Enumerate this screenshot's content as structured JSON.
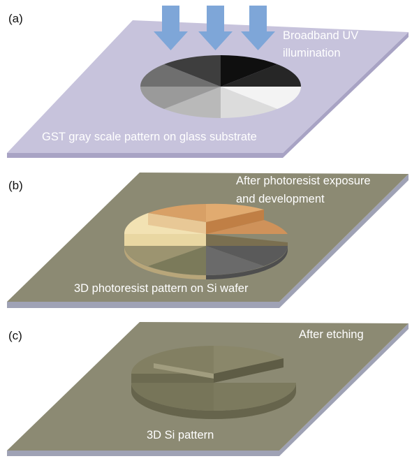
{
  "panels": [
    {
      "label": "(a)",
      "captions": [
        "Broadband UV",
        "illumination"
      ],
      "pattern_caption": "GST gray scale pattern on glass substrate"
    },
    {
      "label": "(b)",
      "captions": [
        "After photoresist exposure",
        "and development"
      ],
      "pattern_caption": "3D photoresist pattern on Si wafer"
    },
    {
      "label": "(c)",
      "captions": [
        "After etching"
      ],
      "pattern_caption": "3D Si pattern"
    }
  ],
  "colors": {
    "glass_top": "#c7c3dc",
    "glass_side": "#a8a3c4",
    "wafer_top": "#8c8a73",
    "wafer_side": "#9fa2b5",
    "uv_arrow": "#7ea6d8",
    "text": "#ffffff"
  },
  "gray_levels": [
    "#101010",
    "#2f2f2f",
    "#4a4a4a",
    "#6b6b6b",
    "#8e8e8e",
    "#b6b6b6",
    "#d9d9d9",
    "#f4f4f4"
  ],
  "resist_colors": [
    "#d39a5f",
    "#c4894f",
    "#f0dfb2",
    "#e7d49f",
    "#8d8a63",
    "#6f6d55",
    "#5b5b5b",
    "#6e6e6e"
  ]
}
